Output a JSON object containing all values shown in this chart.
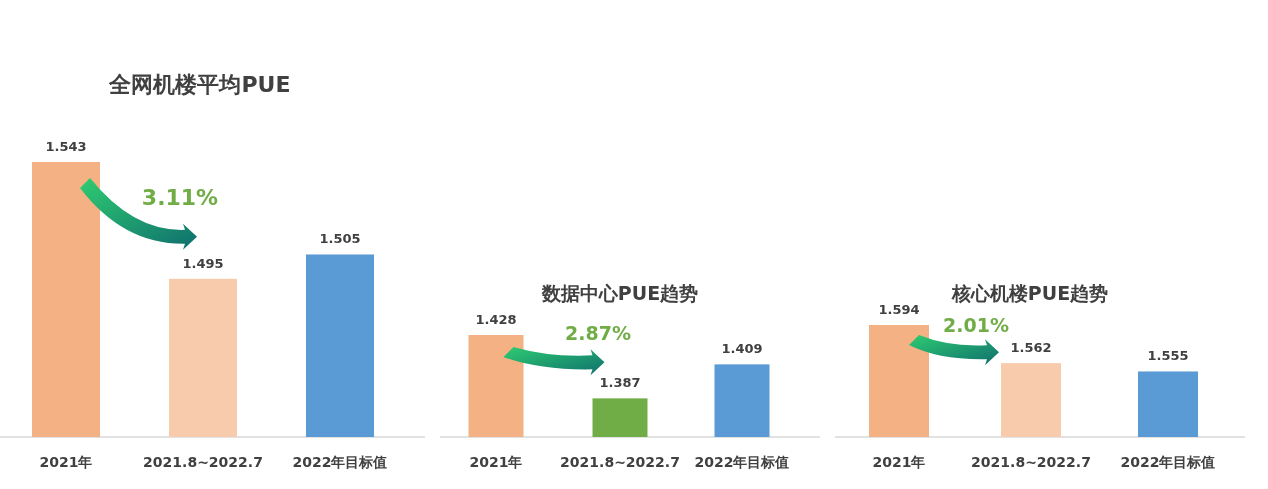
{
  "chart_data": [
    {
      "type": "bar",
      "title": "全网机楼平均PUE",
      "categories": [
        "2021年",
        "2021.8~2022.7",
        "2022年目标值"
      ],
      "values": [
        1.543,
        1.495,
        1.505
      ],
      "colors": [
        "#f4b183",
        "#f8cbad",
        "#5b9bd5"
      ],
      "ylim": [
        1.43,
        1.543
      ],
      "data_labels": true,
      "annotations": [
        "3.11%"
      ]
    },
    {
      "type": "bar",
      "title": "数据中心PUE趋势",
      "categories": [
        "2021年",
        "2021.8~2022.7",
        "2022年目标值"
      ],
      "values": [
        1.428,
        1.387,
        1.409
      ],
      "colors": [
        "#f4b183",
        "#70ad47",
        "#5b9bd5"
      ],
      "ylim": [
        1.362,
        1.428
      ],
      "data_labels": true,
      "annotations": [
        "2.87%"
      ]
    },
    {
      "type": "bar",
      "title": "核心机楼PUE趋势",
      "categories": [
        "2021年",
        "2021.8~2022.7",
        "2022年目标值"
      ],
      "values": [
        1.594,
        1.562,
        1.555
      ],
      "colors": [
        "#f4b183",
        "#f8cbad",
        "#5b9bd5"
      ],
      "ylim": [
        1.5,
        1.594
      ],
      "data_labels": true,
      "annotations": [
        "2.01%"
      ]
    }
  ]
}
